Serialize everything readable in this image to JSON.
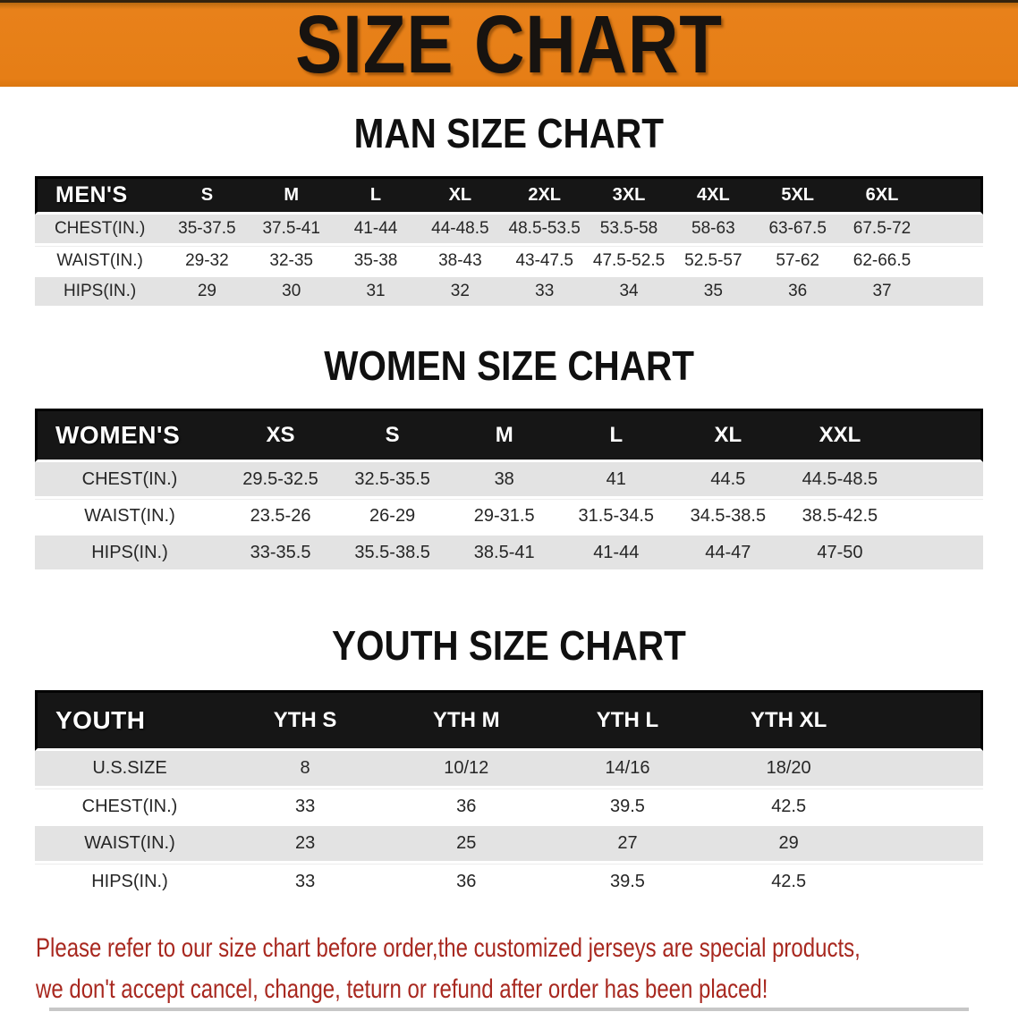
{
  "banner": {
    "title": "SIZE CHART"
  },
  "colors": {
    "banner_bg": "#E8801A",
    "header_bar_bg": "#161616",
    "row_gray": "#E3E3E3",
    "footer_text": "#A8281F"
  },
  "sections": [
    {
      "heading": "MAN SIZE CHART",
      "table": {
        "header_label": "MEN'S",
        "columns": [
          "S",
          "M",
          "L",
          "XL",
          "2XL",
          "3XL",
          "4XL",
          "5XL",
          "6XL"
        ],
        "rows": [
          {
            "label": "CHEST(IN.)",
            "values": [
              "35-37.5",
              "37.5-41",
              "41-44",
              "44-48.5",
              "48.5-53.5",
              "53.5-58",
              "58-63",
              "63-67.5",
              "67.5-72"
            ]
          },
          {
            "label": "WAIST(IN.)",
            "values": [
              "29-32",
              "32-35",
              "35-38",
              "38-43",
              "43-47.5",
              "47.5-52.5",
              "52.5-57",
              "57-62",
              "62-66.5"
            ]
          },
          {
            "label": "HIPS(IN.)",
            "values": [
              "29",
              "30",
              "31",
              "32",
              "33",
              "34",
              "35",
              "36",
              "37"
            ]
          }
        ]
      }
    },
    {
      "heading": "WOMEN SIZE CHART",
      "table": {
        "header_label": "WOMEN'S",
        "columns": [
          "XS",
          "S",
          "M",
          "L",
          "XL",
          "XXL"
        ],
        "rows": [
          {
            "label": "CHEST(IN.)",
            "values": [
              "29.5-32.5",
              "32.5-35.5",
              "38",
              "41",
              "44.5",
              "44.5-48.5"
            ]
          },
          {
            "label": "WAIST(IN.)",
            "values": [
              "23.5-26",
              "26-29",
              "29-31.5",
              "31.5-34.5",
              "34.5-38.5",
              "38.5-42.5"
            ]
          },
          {
            "label": "HIPS(IN.)",
            "values": [
              "33-35.5",
              "35.5-38.5",
              "38.5-41",
              "41-44",
              "44-47",
              "47-50"
            ]
          }
        ]
      }
    },
    {
      "heading": "YOUTH SIZE CHART",
      "table": {
        "header_label": "YOUTH",
        "columns": [
          "YTH S",
          "YTH M",
          "YTH L",
          "YTH XL"
        ],
        "rows": [
          {
            "label": "U.S.SIZE",
            "values": [
              "8",
              "10/12",
              "14/16",
              "18/20"
            ]
          },
          {
            "label": "CHEST(IN.)",
            "values": [
              "33",
              "36",
              "39.5",
              "42.5"
            ]
          },
          {
            "label": "WAIST(IN.)",
            "values": [
              "23",
              "25",
              "27",
              "29"
            ]
          },
          {
            "label": "HIPS(IN.)",
            "values": [
              "33",
              "36",
              "39.5",
              "42.5"
            ]
          }
        ]
      }
    }
  ],
  "footer": {
    "line1": "Please refer to our size chart before order,the customized jerseys are special products,",
    "line2": "we don't accept cancel, change, teturn or refund after order has been placed!"
  }
}
